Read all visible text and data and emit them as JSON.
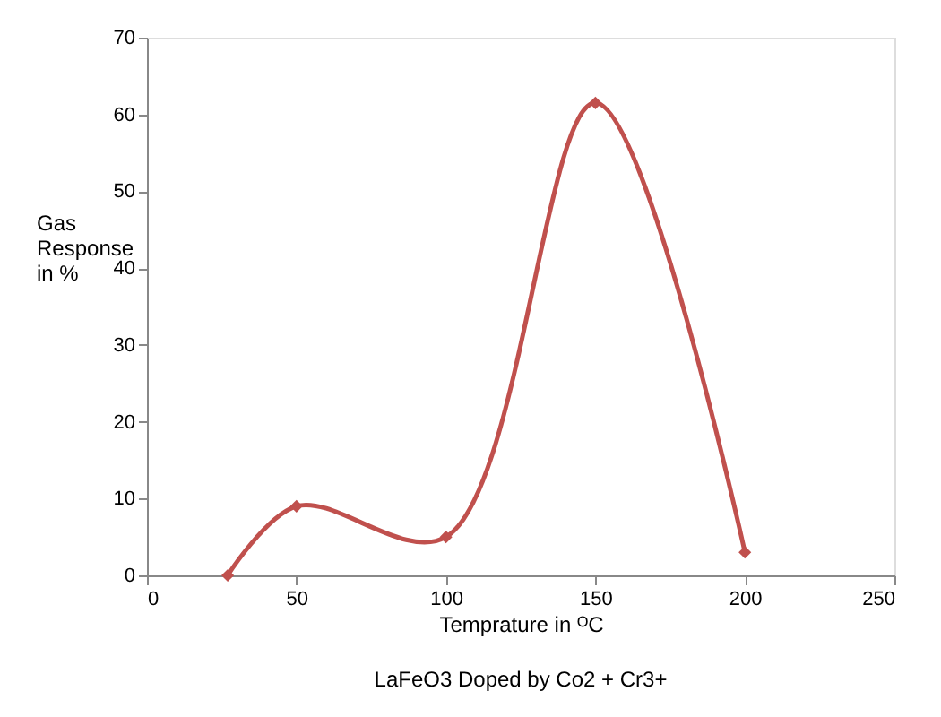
{
  "chart_data": {
    "type": "line",
    "x": [
      27,
      50,
      100,
      150,
      200
    ],
    "series": [
      {
        "color": "#c0504d",
        "values": [
          0,
          9,
          5,
          61.5,
          3
        ]
      }
    ],
    "xlim": [
      0,
      250
    ],
    "xticks": [
      0,
      50,
      100,
      150,
      200,
      250
    ],
    "ylim": [
      0,
      70
    ],
    "yticks": [
      0,
      10,
      20,
      30,
      40,
      50,
      60,
      70
    ],
    "xlabel": "Temprature in ᴼC",
    "ylabel": "Gas Response in %",
    "annotations": [
      "LaFeO3  Doped by Co2 + Cr3+"
    ],
    "marker": "diamond",
    "line_style": "solid",
    "grid": false,
    "legend": false
  }
}
